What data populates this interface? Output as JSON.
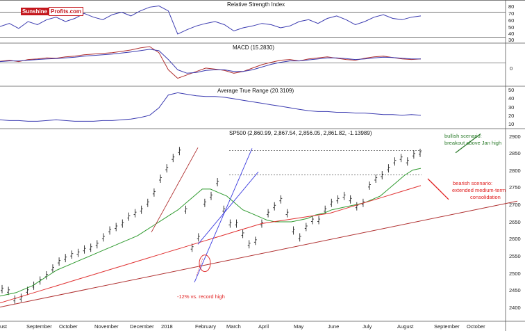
{
  "logo": {
    "part1": "Sunshine",
    "part2": "Profits.com"
  },
  "months": [
    "ust",
    "September",
    "October",
    "November",
    "December",
    "2018",
    "February",
    "March",
    "April",
    "May",
    "June",
    "July",
    "August",
    "September",
    "October"
  ],
  "rsi": {
    "title": "Relative Strength Index",
    "ticks": [
      "80",
      "70",
      "60",
      "50",
      "40",
      "30"
    ]
  },
  "macd": {
    "title": "MACD (15.2830)",
    "ticks": [
      "0"
    ]
  },
  "atr": {
    "title": "Average True Range (20.3109)",
    "ticks": [
      "50",
      "40",
      "30",
      "20",
      "10"
    ]
  },
  "main": {
    "title": "SP500 (2,860.99, 2,867.54, 2,856.05, 2,861.82, -1.13989)",
    "ticks": [
      "2900",
      "2850",
      "2800",
      "2750",
      "2700",
      "2650",
      "2600",
      "2550",
      "2500",
      "2450",
      "2400"
    ]
  },
  "annotations": {
    "bullish_line1": "bullish scenario:",
    "bullish_line2": "breakout above Jan high",
    "bearish_line1": "bearish scenario:",
    "bearish_line2": "extended medium-term",
    "bearish_line3": "consolidation",
    "record_note": "-12% vs. record high"
  },
  "colors": {
    "price": "#222222",
    "ma50": "#2e9a2e",
    "ma200": "#e03030",
    "trend_support": "#b03030",
    "channel": "#3a3ae0",
    "indicator": "#3a3ab0",
    "bullish": "#2a7a2a",
    "bearish": "#e02020"
  },
  "chart_data": [
    {
      "type": "line",
      "title": "Relative Strength Index",
      "ylim": [
        25,
        85
      ],
      "yticks": [
        80,
        70,
        60,
        50,
        40,
        30
      ],
      "reference_lines": [
        70,
        30
      ],
      "series": [
        {
          "name": "RSI",
          "values": [
            47,
            52,
            44,
            55,
            50,
            58,
            62,
            55,
            60,
            68,
            62,
            58,
            66,
            70,
            64,
            72,
            78,
            80,
            72,
            35,
            42,
            48,
            52,
            55,
            50,
            40,
            45,
            48,
            52,
            50,
            45,
            48,
            55,
            58,
            52,
            60,
            64,
            58,
            50,
            55,
            62,
            66,
            60,
            58,
            62,
            64
          ]
        }
      ]
    },
    {
      "type": "line",
      "title": "MACD (15.2830)",
      "ylim": [
        -60,
        50
      ],
      "yticks": [
        0
      ],
      "series": [
        {
          "name": "MACD",
          "values": [
            5,
            8,
            4,
            10,
            12,
            15,
            14,
            18,
            20,
            24,
            26,
            28,
            30,
            34,
            38,
            44,
            48,
            30,
            -20,
            -45,
            -35,
            -25,
            -15,
            -18,
            -22,
            -30,
            -25,
            -15,
            -5,
            2,
            8,
            10,
            6,
            12,
            15,
            18,
            14,
            10,
            8,
            14,
            18,
            20,
            16,
            12,
            10,
            12
          ]
        },
        {
          "name": "Signal",
          "values": [
            4,
            6,
            6,
            8,
            10,
            12,
            13,
            15,
            17,
            20,
            22,
            24,
            26,
            29,
            32,
            36,
            40,
            36,
            10,
            -20,
            -30,
            -28,
            -22,
            -20,
            -20,
            -25,
            -25,
            -20,
            -12,
            -4,
            2,
            6,
            6,
            9,
            12,
            15,
            15,
            13,
            10,
            12,
            15,
            17,
            16,
            14,
            12,
            12
          ]
        }
      ]
    },
    {
      "type": "line",
      "title": "Average True Range (20.3109)",
      "ylim": [
        5,
        55
      ],
      "yticks": [
        50,
        40,
        30,
        20,
        10
      ],
      "series": [
        {
          "name": "ATR",
          "values": [
            14,
            13,
            13,
            12,
            12,
            13,
            14,
            13,
            12,
            12,
            12,
            13,
            13,
            14,
            15,
            17,
            20,
            30,
            47,
            50,
            48,
            46,
            45,
            45,
            44,
            42,
            40,
            38,
            36,
            34,
            32,
            30,
            28,
            26,
            25,
            25,
            24,
            24,
            23,
            23,
            22,
            21,
            21,
            20,
            21,
            20
          ]
        }
      ]
    },
    {
      "type": "line",
      "title": "SP500 (2,860.99, 2,867.54, 2,856.05, 2,861.82, -1.13989)",
      "ylim": [
        2385,
        2925
      ],
      "yticks": [
        2900,
        2850,
        2800,
        2750,
        2700,
        2650,
        2600,
        2550,
        2500,
        2450,
        2400
      ],
      "months": [
        "ust",
        "September",
        "October",
        "November",
        "December",
        "2018",
        "February",
        "March",
        "April",
        "May",
        "June",
        "July",
        "August",
        "September",
        "October"
      ],
      "series": [
        {
          "name": "SP500",
          "values": [
            2470,
            2465,
            2440,
            2445,
            2465,
            2480,
            2495,
            2510,
            2530,
            2550,
            2560,
            2570,
            2575,
            2585,
            2590,
            2600,
            2620,
            2640,
            2650,
            2660,
            2680,
            2690,
            2700,
            2720,
            2750,
            2790,
            2820,
            2850,
            2870,
            2700,
            2590,
            2620,
            2720,
            2740,
            2780,
            2700,
            2660,
            2660,
            2630,
            2600,
            2610,
            2660,
            2690,
            2710,
            2730,
            2690,
            2640,
            2620,
            2650,
            2670,
            2670,
            2700,
            2720,
            2730,
            2740,
            2730,
            2710,
            2720,
            2770,
            2790,
            2800,
            2820,
            2840,
            2850,
            2840,
            2860,
            2865
          ]
        },
        {
          "name": "MA50",
          "values": [
            2450,
            2455,
            2460,
            2470,
            2480,
            2495,
            2510,
            2525,
            2535,
            2545,
            2555,
            2565,
            2575,
            2585,
            2595,
            2605,
            2615,
            2625,
            2640,
            2655,
            2670,
            2685,
            2700,
            2720,
            2740,
            2760,
            2760,
            2750,
            2740,
            2720,
            2700,
            2690,
            2680,
            2670,
            2665,
            2665,
            2665,
            2670,
            2675,
            2685,
            2690,
            2700,
            2705,
            2710,
            2715,
            2720,
            2730,
            2740,
            2760,
            2780,
            2800,
            2815,
            2820
          ]
        },
        {
          "name": "MA200",
          "values": [
            2430,
            2440,
            2450,
            2460,
            2470,
            2480,
            2490,
            2500,
            2510,
            2520,
            2530,
            2540,
            2550,
            2560,
            2570,
            2580,
            2590,
            2600,
            2610,
            2620,
            2630,
            2640,
            2650,
            2660,
            2665,
            2670,
            2675,
            2680,
            2685,
            2690,
            2700,
            2710,
            2720,
            2730,
            2740,
            2750,
            2760,
            2770
          ]
        }
      ],
      "reference_lines": [
        2872,
        2801
      ],
      "annotations": [
        {
          "text": "bullish scenario: breakout above Jan high"
        },
        {
          "text": "bearish scenario: extended medium-term consolidation"
        },
        {
          "text": "-12% vs. record high"
        }
      ]
    }
  ]
}
